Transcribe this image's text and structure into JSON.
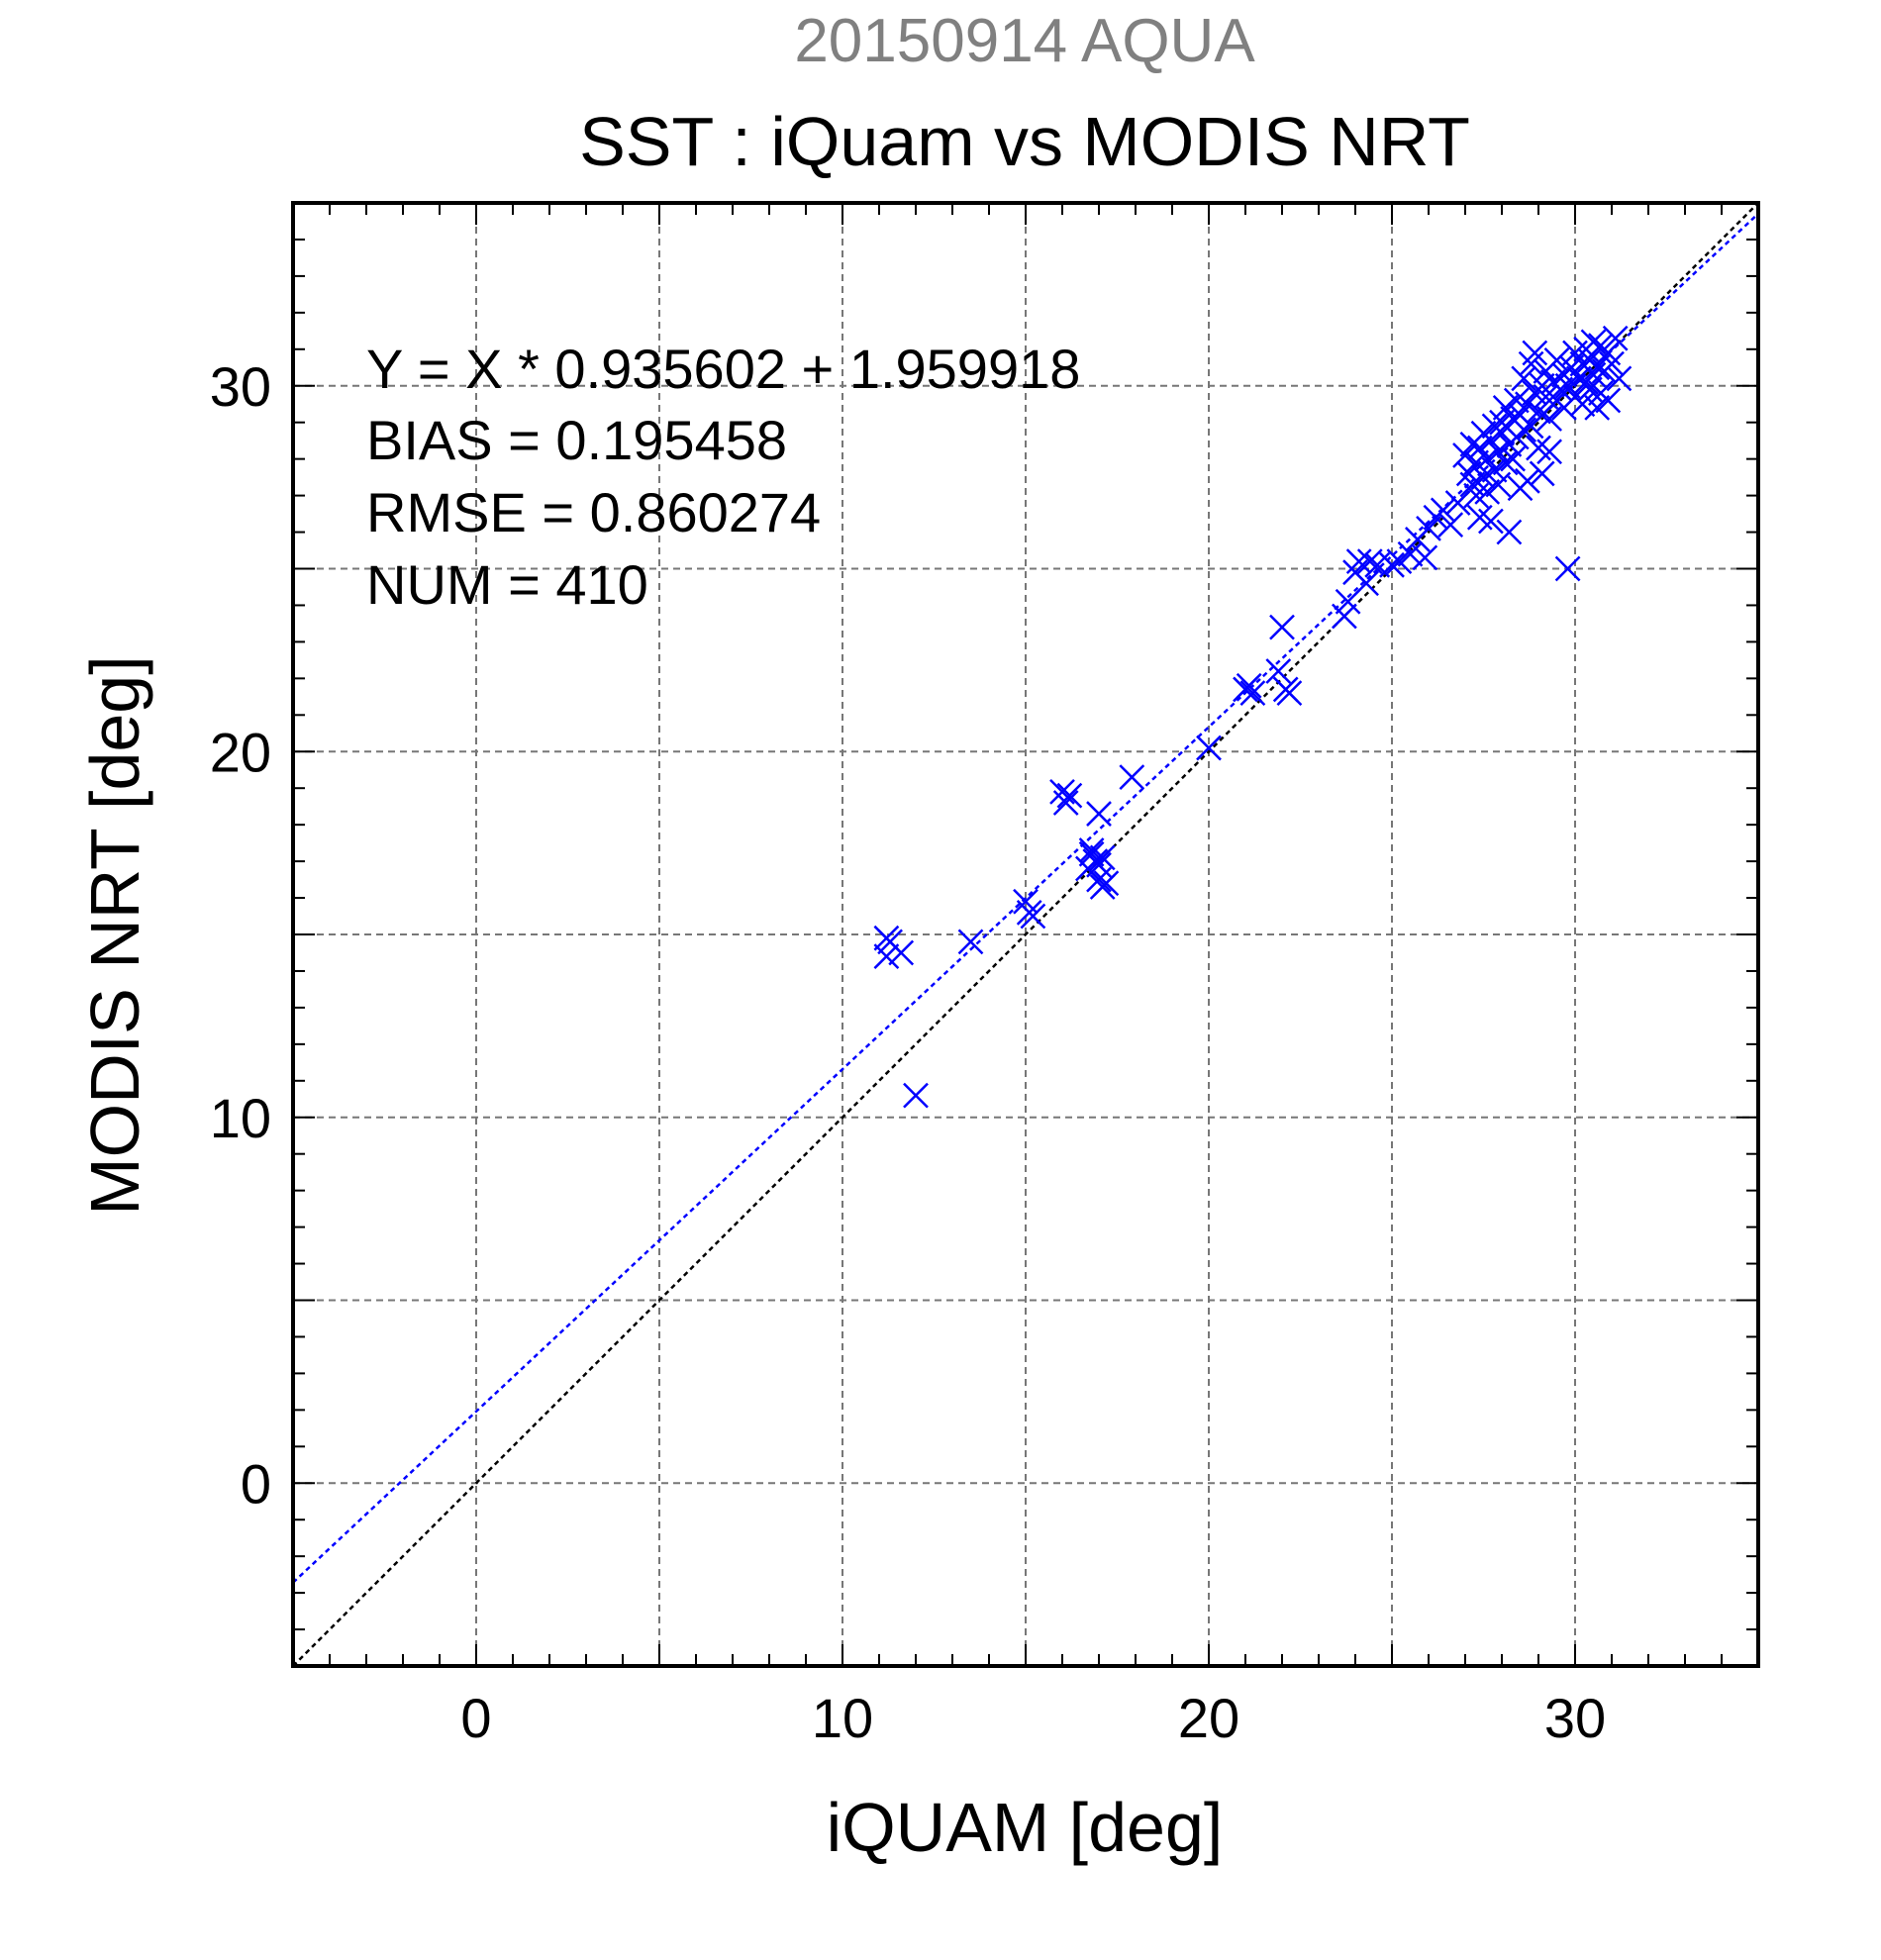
{
  "chart_data": {
    "type": "scatter",
    "subtitle": "20150914 AQUA",
    "title": "SST : iQuam vs MODIS NRT",
    "xlabel": "iQUAM [deg]",
    "ylabel": "MODIS NRT [deg]",
    "xlim": [
      -5,
      35
    ],
    "ylim": [
      -5,
      35
    ],
    "x_ticks": [
      0,
      10,
      20,
      30
    ],
    "y_ticks": [
      0,
      10,
      20,
      30
    ],
    "grid": true,
    "stats": [
      "Y = X * 0.935602 + 1.959918",
      "BIAS = 0.195458",
      "RMSE = 0.860274",
      "NUM = 410"
    ],
    "fit": {
      "slope": 0.935602,
      "intercept": 1.959918
    },
    "colors": {
      "points": "#0000ff",
      "fit_line": "#0000ff",
      "identity_line": "#000000",
      "subtitle": "#808080"
    },
    "series": [
      {
        "marker": "x",
        "points": [
          [
            11.2,
            14.9
          ],
          [
            11.3,
            14.8
          ],
          [
            11.2,
            14.4
          ],
          [
            11.6,
            14.5
          ],
          [
            12.0,
            10.6
          ],
          [
            13.5,
            14.8
          ],
          [
            15.0,
            15.9
          ],
          [
            15.1,
            15.6
          ],
          [
            15.2,
            15.5
          ],
          [
            16.0,
            18.9
          ],
          [
            16.2,
            18.8
          ],
          [
            16.1,
            18.6
          ],
          [
            16.8,
            17.2
          ],
          [
            16.9,
            17.0
          ],
          [
            17.0,
            16.9
          ],
          [
            16.7,
            16.8
          ],
          [
            17.1,
            17.1
          ],
          [
            16.8,
            17.3
          ],
          [
            17.0,
            18.3
          ],
          [
            17.2,
            16.4
          ],
          [
            17.1,
            16.3
          ],
          [
            17.0,
            16.5
          ],
          [
            17.9,
            19.3
          ],
          [
            20.0,
            20.1
          ],
          [
            21.0,
            21.7
          ],
          [
            21.1,
            21.8
          ],
          [
            21.2,
            21.6
          ],
          [
            21.9,
            22.2
          ],
          [
            22.0,
            23.4
          ],
          [
            22.1,
            21.7
          ],
          [
            22.2,
            21.6
          ],
          [
            23.7,
            23.7
          ],
          [
            23.8,
            24.1
          ],
          [
            24.0,
            24.9
          ],
          [
            24.1,
            25.2
          ],
          [
            24.3,
            24.6
          ],
          [
            24.4,
            25.2
          ],
          [
            24.6,
            25.1
          ],
          [
            25.0,
            25.1
          ],
          [
            25.2,
            25.2
          ],
          [
            25.5,
            25.4
          ],
          [
            25.7,
            25.8
          ],
          [
            25.9,
            25.3
          ],
          [
            26.0,
            26.1
          ],
          [
            26.2,
            26.4
          ],
          [
            26.4,
            26.6
          ],
          [
            26.6,
            26.2
          ],
          [
            26.8,
            26.8
          ],
          [
            27.0,
            28.1
          ],
          [
            27.1,
            27.6
          ],
          [
            27.2,
            27.3
          ],
          [
            27.2,
            28.4
          ],
          [
            27.3,
            27.0
          ],
          [
            27.3,
            27.9
          ],
          [
            27.4,
            28.3
          ],
          [
            27.4,
            26.4
          ],
          [
            27.5,
            27.5
          ],
          [
            27.5,
            28.7
          ],
          [
            27.6,
            27.1
          ],
          [
            27.6,
            28.0
          ],
          [
            27.7,
            28.5
          ],
          [
            27.7,
            26.3
          ],
          [
            27.8,
            27.7
          ],
          [
            27.8,
            28.9
          ],
          [
            27.9,
            27.3
          ],
          [
            27.9,
            28.2
          ],
          [
            28.0,
            28.7
          ],
          [
            28.0,
            29.0
          ],
          [
            28.1,
            27.9
          ],
          [
            28.1,
            29.4
          ],
          [
            28.2,
            28.4
          ],
          [
            28.2,
            26.0
          ],
          [
            28.3,
            29.1
          ],
          [
            28.3,
            28.0
          ],
          [
            28.4,
            29.6
          ],
          [
            28.4,
            28.6
          ],
          [
            28.5,
            27.2
          ],
          [
            28.5,
            29.2
          ],
          [
            28.6,
            28.8
          ],
          [
            28.6,
            30.2
          ],
          [
            28.7,
            27.4
          ],
          [
            28.7,
            29.5
          ],
          [
            28.8,
            30.6
          ],
          [
            28.8,
            28.9
          ],
          [
            28.9,
            29.8
          ],
          [
            28.9,
            30.9
          ],
          [
            29.0,
            29.3
          ],
          [
            29.0,
            28.3
          ],
          [
            29.1,
            30.0
          ],
          [
            29.1,
            27.6
          ],
          [
            29.2,
            29.7
          ],
          [
            29.2,
            30.4
          ],
          [
            29.3,
            29.1
          ],
          [
            29.3,
            28.2
          ],
          [
            29.4,
            30.1
          ],
          [
            29.5,
            29.6
          ],
          [
            29.5,
            30.7
          ],
          [
            29.6,
            29.9
          ],
          [
            29.7,
            30.3
          ],
          [
            29.7,
            29.4
          ],
          [
            29.8,
            30.0
          ],
          [
            29.8,
            25.0
          ],
          [
            29.9,
            30.5
          ],
          [
            30.0,
            29.7
          ],
          [
            30.0,
            30.9
          ],
          [
            30.1,
            30.2
          ],
          [
            30.2,
            30.6
          ],
          [
            30.2,
            29.5
          ],
          [
            30.3,
            31.0
          ],
          [
            30.3,
            30.1
          ],
          [
            30.4,
            29.9
          ],
          [
            30.4,
            30.7
          ],
          [
            30.5,
            31.2
          ],
          [
            30.5,
            30.3
          ],
          [
            30.6,
            29.4
          ],
          [
            30.6,
            30.5
          ],
          [
            30.7,
            31.1
          ],
          [
            30.7,
            29.8
          ],
          [
            30.8,
            30.4
          ],
          [
            30.9,
            30.9
          ],
          [
            31.0,
            30.6
          ],
          [
            31.1,
            31.3
          ],
          [
            31.2,
            30.2
          ],
          [
            30.9,
            29.6
          ]
        ]
      }
    ]
  }
}
